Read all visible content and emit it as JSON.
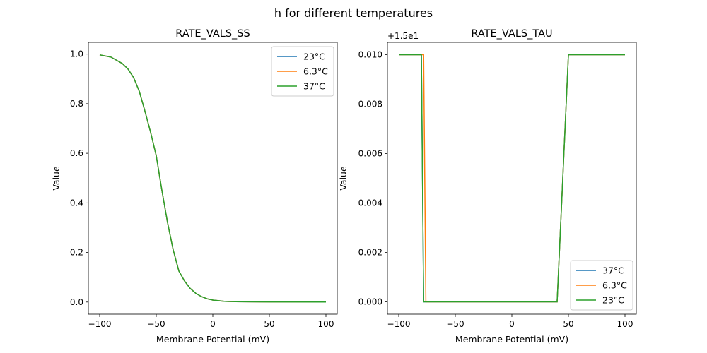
{
  "chart_data": {
    "suptitle": "h for different temperatures",
    "colors": [
      "#1f77b4",
      "#ff7f0e",
      "#2ca02c"
    ],
    "charts": [
      {
        "type": "line",
        "title": "RATE_VALS_SS",
        "xlabel": "Membrane Potential (mV)",
        "ylabel": "Value",
        "xlim": [
          -110,
          110
        ],
        "ylim": [
          -0.049,
          1.0475
        ],
        "xticks": [
          -100,
          -50,
          0,
          50,
          100
        ],
        "xtick_labels": [
          "−100",
          "−50",
          "0",
          "50",
          "100"
        ],
        "yticks": [
          0,
          0.2,
          0.4,
          0.6,
          0.8,
          1.0
        ],
        "ytick_labels": [
          "0.0",
          "0.2",
          "0.4",
          "0.6",
          "0.8",
          "1.0"
        ],
        "offset_text": "",
        "legend_position": "upper right",
        "series": [
          {
            "name": "23°C",
            "x": [
              -100,
              -90,
              -80,
              -75,
              -70,
              -65,
              -60,
              -55,
              -50,
              -45,
              -40,
              -35,
              -30,
              -25,
              -20,
              -15,
              -10,
              -5,
              0,
              10,
              20,
              30,
              50,
              100
            ],
            "y": [
              0.997,
              0.988,
              0.962,
              0.94,
              0.905,
              0.85,
              0.77,
              0.685,
              0.59,
              0.45,
              0.32,
              0.21,
              0.125,
              0.085,
              0.055,
              0.035,
              0.022,
              0.013,
              0.008,
              0.003,
              0.0015,
              0.001,
              0.0005,
              0.0003
            ]
          },
          {
            "name": "6.3°C",
            "x": [
              -100,
              -90,
              -80,
              -75,
              -70,
              -65,
              -60,
              -55,
              -50,
              -45,
              -40,
              -35,
              -30,
              -25,
              -20,
              -15,
              -10,
              -5,
              0,
              10,
              20,
              30,
              50,
              100
            ],
            "y": [
              0.997,
              0.988,
              0.962,
              0.94,
              0.905,
              0.85,
              0.77,
              0.685,
              0.59,
              0.45,
              0.32,
              0.21,
              0.125,
              0.085,
              0.055,
              0.035,
              0.022,
              0.013,
              0.008,
              0.003,
              0.0015,
              0.001,
              0.0005,
              0.0003
            ]
          },
          {
            "name": "37°C",
            "x": [
              -100,
              -90,
              -80,
              -75,
              -70,
              -65,
              -60,
              -55,
              -50,
              -45,
              -40,
              -35,
              -30,
              -25,
              -20,
              -15,
              -10,
              -5,
              0,
              10,
              20,
              30,
              50,
              100
            ],
            "y": [
              0.997,
              0.988,
              0.962,
              0.94,
              0.905,
              0.85,
              0.77,
              0.685,
              0.59,
              0.45,
              0.32,
              0.21,
              0.125,
              0.085,
              0.055,
              0.035,
              0.022,
              0.013,
              0.008,
              0.003,
              0.0015,
              0.001,
              0.0005,
              0.0003
            ]
          }
        ]
      },
      {
        "type": "line",
        "title": "RATE_VALS_TAU",
        "xlabel": "Membrane Potential (mV)",
        "ylabel": "Value",
        "xlim": [
          -110,
          110
        ],
        "ylim": [
          -0.0005,
          0.0105
        ],
        "xticks": [
          -100,
          -50,
          0,
          50,
          100
        ],
        "xtick_labels": [
          "−100",
          "−50",
          "0",
          "50",
          "100"
        ],
        "yticks": [
          0,
          0.002,
          0.004,
          0.006,
          0.008,
          0.01
        ],
        "ytick_labels": [
          "0.000",
          "0.002",
          "0.004",
          "0.006",
          "0.008",
          "0.010"
        ],
        "offset_text": "+1.5e1",
        "offset_value": 15,
        "legend_position": "lower right",
        "series": [
          {
            "name": "37°C",
            "x": [
              -100,
              -80,
              -78,
              40,
              50,
              100
            ],
            "y": [
              0.01,
              0.01,
              0,
              0,
              0.01,
              0.01
            ]
          },
          {
            "name": "6.3°C",
            "x": [
              -100,
              -78,
              -76,
              40,
              50,
              100
            ],
            "y": [
              0.01,
              0.01,
              0,
              0,
              0.01,
              0.01
            ]
          },
          {
            "name": "23°C",
            "x": [
              -100,
              -80,
              -78,
              40,
              50,
              100
            ],
            "y": [
              0.01,
              0.01,
              0,
              0,
              0.01,
              0.01
            ]
          }
        ]
      }
    ]
  }
}
